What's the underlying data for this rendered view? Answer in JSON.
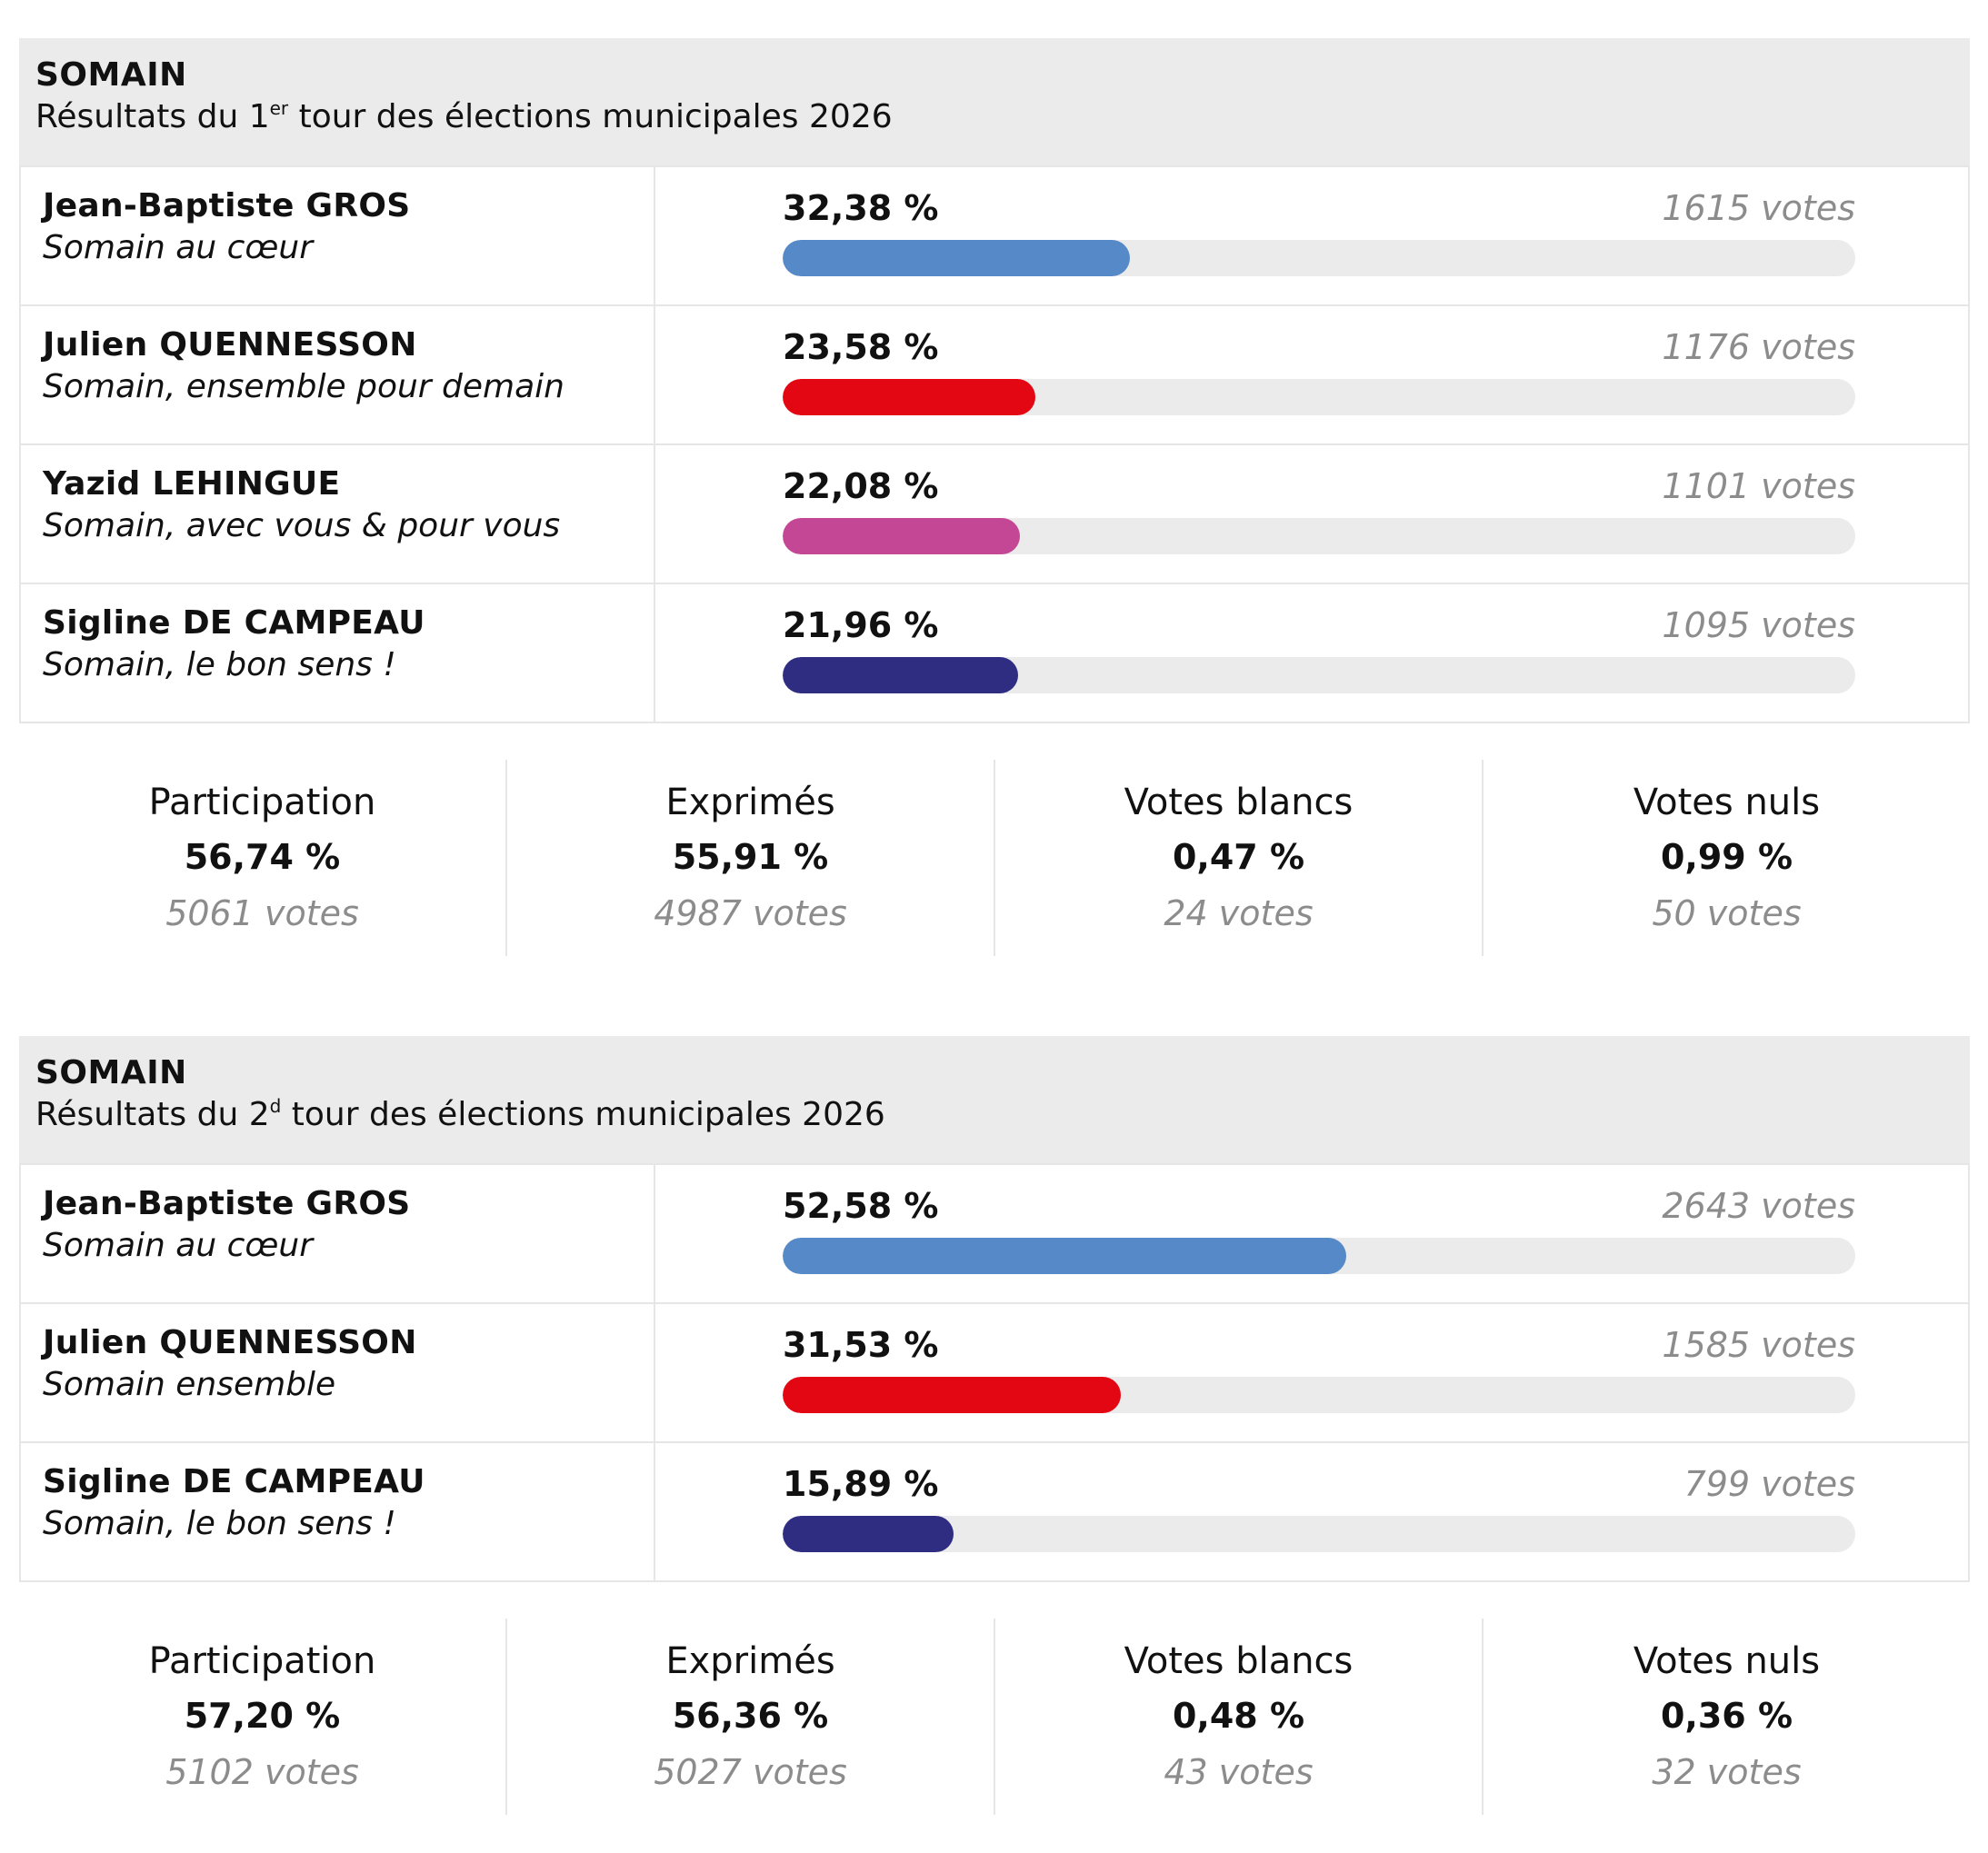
{
  "colors": {
    "header_bg": "#ebebeb",
    "track": "#ebebeb",
    "votes_text": "#8c8c8c",
    "gros": "#5589c8",
    "quennesson": "#e30613",
    "lehingue": "#c44796",
    "campeau": "#2e2d82"
  },
  "chart_data": [
    {
      "type": "bar",
      "orientation": "horizontal",
      "commune": "SOMAIN",
      "title_prefix": "Résultats du 1",
      "title_sup": "er",
      "title_suffix": " tour des élections municipales 2026",
      "xlim": [
        0,
        100
      ],
      "candidates": [
        {
          "name": "Jean-Baptiste GROS",
          "list": "Somain au cœur",
          "value": 32.38,
          "pct_label": "32,38 %",
          "votes_label": "1615 votes",
          "color": "#5589c8"
        },
        {
          "name": "Julien QUENNESSON",
          "list": "Somain, ensemble pour demain",
          "value": 23.58,
          "pct_label": "23,58 %",
          "votes_label": "1176 votes",
          "color": "#e30613"
        },
        {
          "name": "Yazid LEHINGUE",
          "list": "Somain, avec vous & pour vous",
          "value": 22.08,
          "pct_label": "22,08 %",
          "votes_label": "1101 votes",
          "color": "#c44796"
        },
        {
          "name": "Sigline DE CAMPEAU",
          "list": "Somain, le bon sens !",
          "value": 21.96,
          "pct_label": "21,96 %",
          "votes_label": "1095 votes",
          "color": "#2e2d82"
        }
      ],
      "stats": [
        {
          "label": "Participation",
          "pct": "56,74 %",
          "votes": "5061 votes"
        },
        {
          "label": "Exprimés",
          "pct": "55,91 %",
          "votes": "4987 votes"
        },
        {
          "label": "Votes blancs",
          "pct": "0,47 %",
          "votes": "24 votes"
        },
        {
          "label": "Votes nuls",
          "pct": "0,99 %",
          "votes": "50 votes"
        }
      ]
    },
    {
      "type": "bar",
      "orientation": "horizontal",
      "commune": "SOMAIN",
      "title_prefix": "Résultats du 2",
      "title_sup": "d",
      "title_suffix": " tour des élections municipales 2026",
      "xlim": [
        0,
        100
      ],
      "candidates": [
        {
          "name": "Jean-Baptiste GROS",
          "list": "Somain au cœur",
          "value": 52.58,
          "pct_label": "52,58 %",
          "votes_label": "2643 votes",
          "color": "#5589c8"
        },
        {
          "name": "Julien QUENNESSON",
          "list": "Somain ensemble",
          "value": 31.53,
          "pct_label": "31,53 %",
          "votes_label": "1585 votes",
          "color": "#e30613"
        },
        {
          "name": "Sigline DE CAMPEAU",
          "list": "Somain, le bon sens !",
          "value": 15.89,
          "pct_label": "15,89 %",
          "votes_label": "799 votes",
          "color": "#2e2d82"
        }
      ],
      "stats": [
        {
          "label": "Participation",
          "pct": "57,20 %",
          "votes": "5102 votes"
        },
        {
          "label": "Exprimés",
          "pct": "56,36 %",
          "votes": "5027 votes"
        },
        {
          "label": "Votes blancs",
          "pct": "0,48 %",
          "votes": "43 votes"
        },
        {
          "label": "Votes nuls",
          "pct": "0,36 %",
          "votes": "32 votes"
        }
      ]
    }
  ]
}
